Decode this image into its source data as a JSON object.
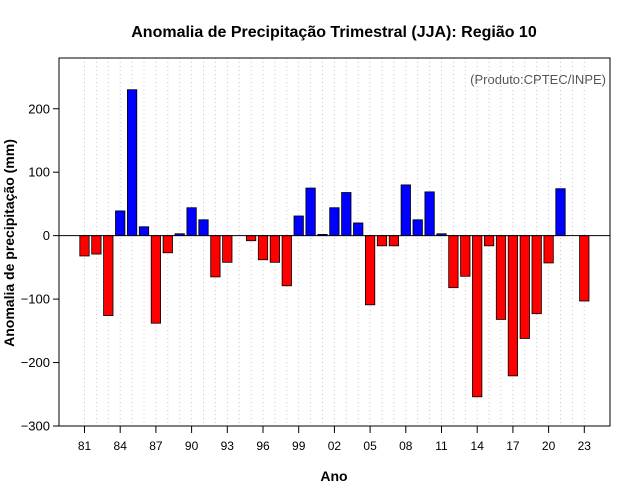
{
  "chart_data": {
    "type": "bar",
    "title": "Anomalia de Precipitação Trimestral (JJA): Região 10",
    "xlabel": "Ano",
    "ylabel": "Anomalia de precipitação (mm)",
    "credit": "(Produto:CPTEC/INPE)",
    "ylim": [
      -300,
      280
    ],
    "yticks": [
      -300,
      -200,
      -100,
      0,
      100,
      200
    ],
    "ytick_labels": [
      "−300",
      "−200",
      "−100",
      "0",
      "100",
      "200"
    ],
    "grid": "vertical dotted",
    "positive_color": "#0000FF",
    "negative_color": "#FF0000",
    "years": [
      1981,
      1982,
      1983,
      1984,
      1985,
      1986,
      1987,
      1988,
      1989,
      1990,
      1991,
      1992,
      1993,
      1994,
      1995,
      1996,
      1997,
      1998,
      1999,
      2000,
      2001,
      2002,
      2003,
      2004,
      2005,
      2006,
      2007,
      2008,
      2009,
      2010,
      2011,
      2012,
      2013,
      2014,
      2015,
      2016,
      2017,
      2018,
      2019,
      2020,
      2021,
      2022,
      2023
    ],
    "values": [
      -32,
      -29,
      -126,
      39,
      230,
      14,
      -138,
      -27,
      3,
      44,
      25,
      -65,
      -42,
      0,
      -8,
      -38,
      -42,
      -79,
      31,
      75,
      2,
      44,
      68,
      20,
      -109,
      -16,
      -16,
      80,
      25,
      69,
      3,
      -82,
      -64,
      -254,
      -16,
      -132,
      -221,
      -162,
      -123,
      -43,
      74,
      0,
      -103
    ],
    "xtick_labels": [
      {
        "year": 1981,
        "label": "81"
      },
      {
        "year": 1984,
        "label": "84"
      },
      {
        "year": 1987,
        "label": "87"
      },
      {
        "year": 1990,
        "label": "90"
      },
      {
        "year": 1993,
        "label": "93"
      },
      {
        "year": 1996,
        "label": "96"
      },
      {
        "year": 1999,
        "label": "99"
      },
      {
        "year": 2002,
        "label": "02"
      },
      {
        "year": 2005,
        "label": "05"
      },
      {
        "year": 2008,
        "label": "08"
      },
      {
        "year": 2011,
        "label": "11"
      },
      {
        "year": 2014,
        "label": "14"
      },
      {
        "year": 2017,
        "label": "17"
      },
      {
        "year": 2020,
        "label": "20"
      },
      {
        "year": 2023,
        "label": "23"
      }
    ]
  }
}
